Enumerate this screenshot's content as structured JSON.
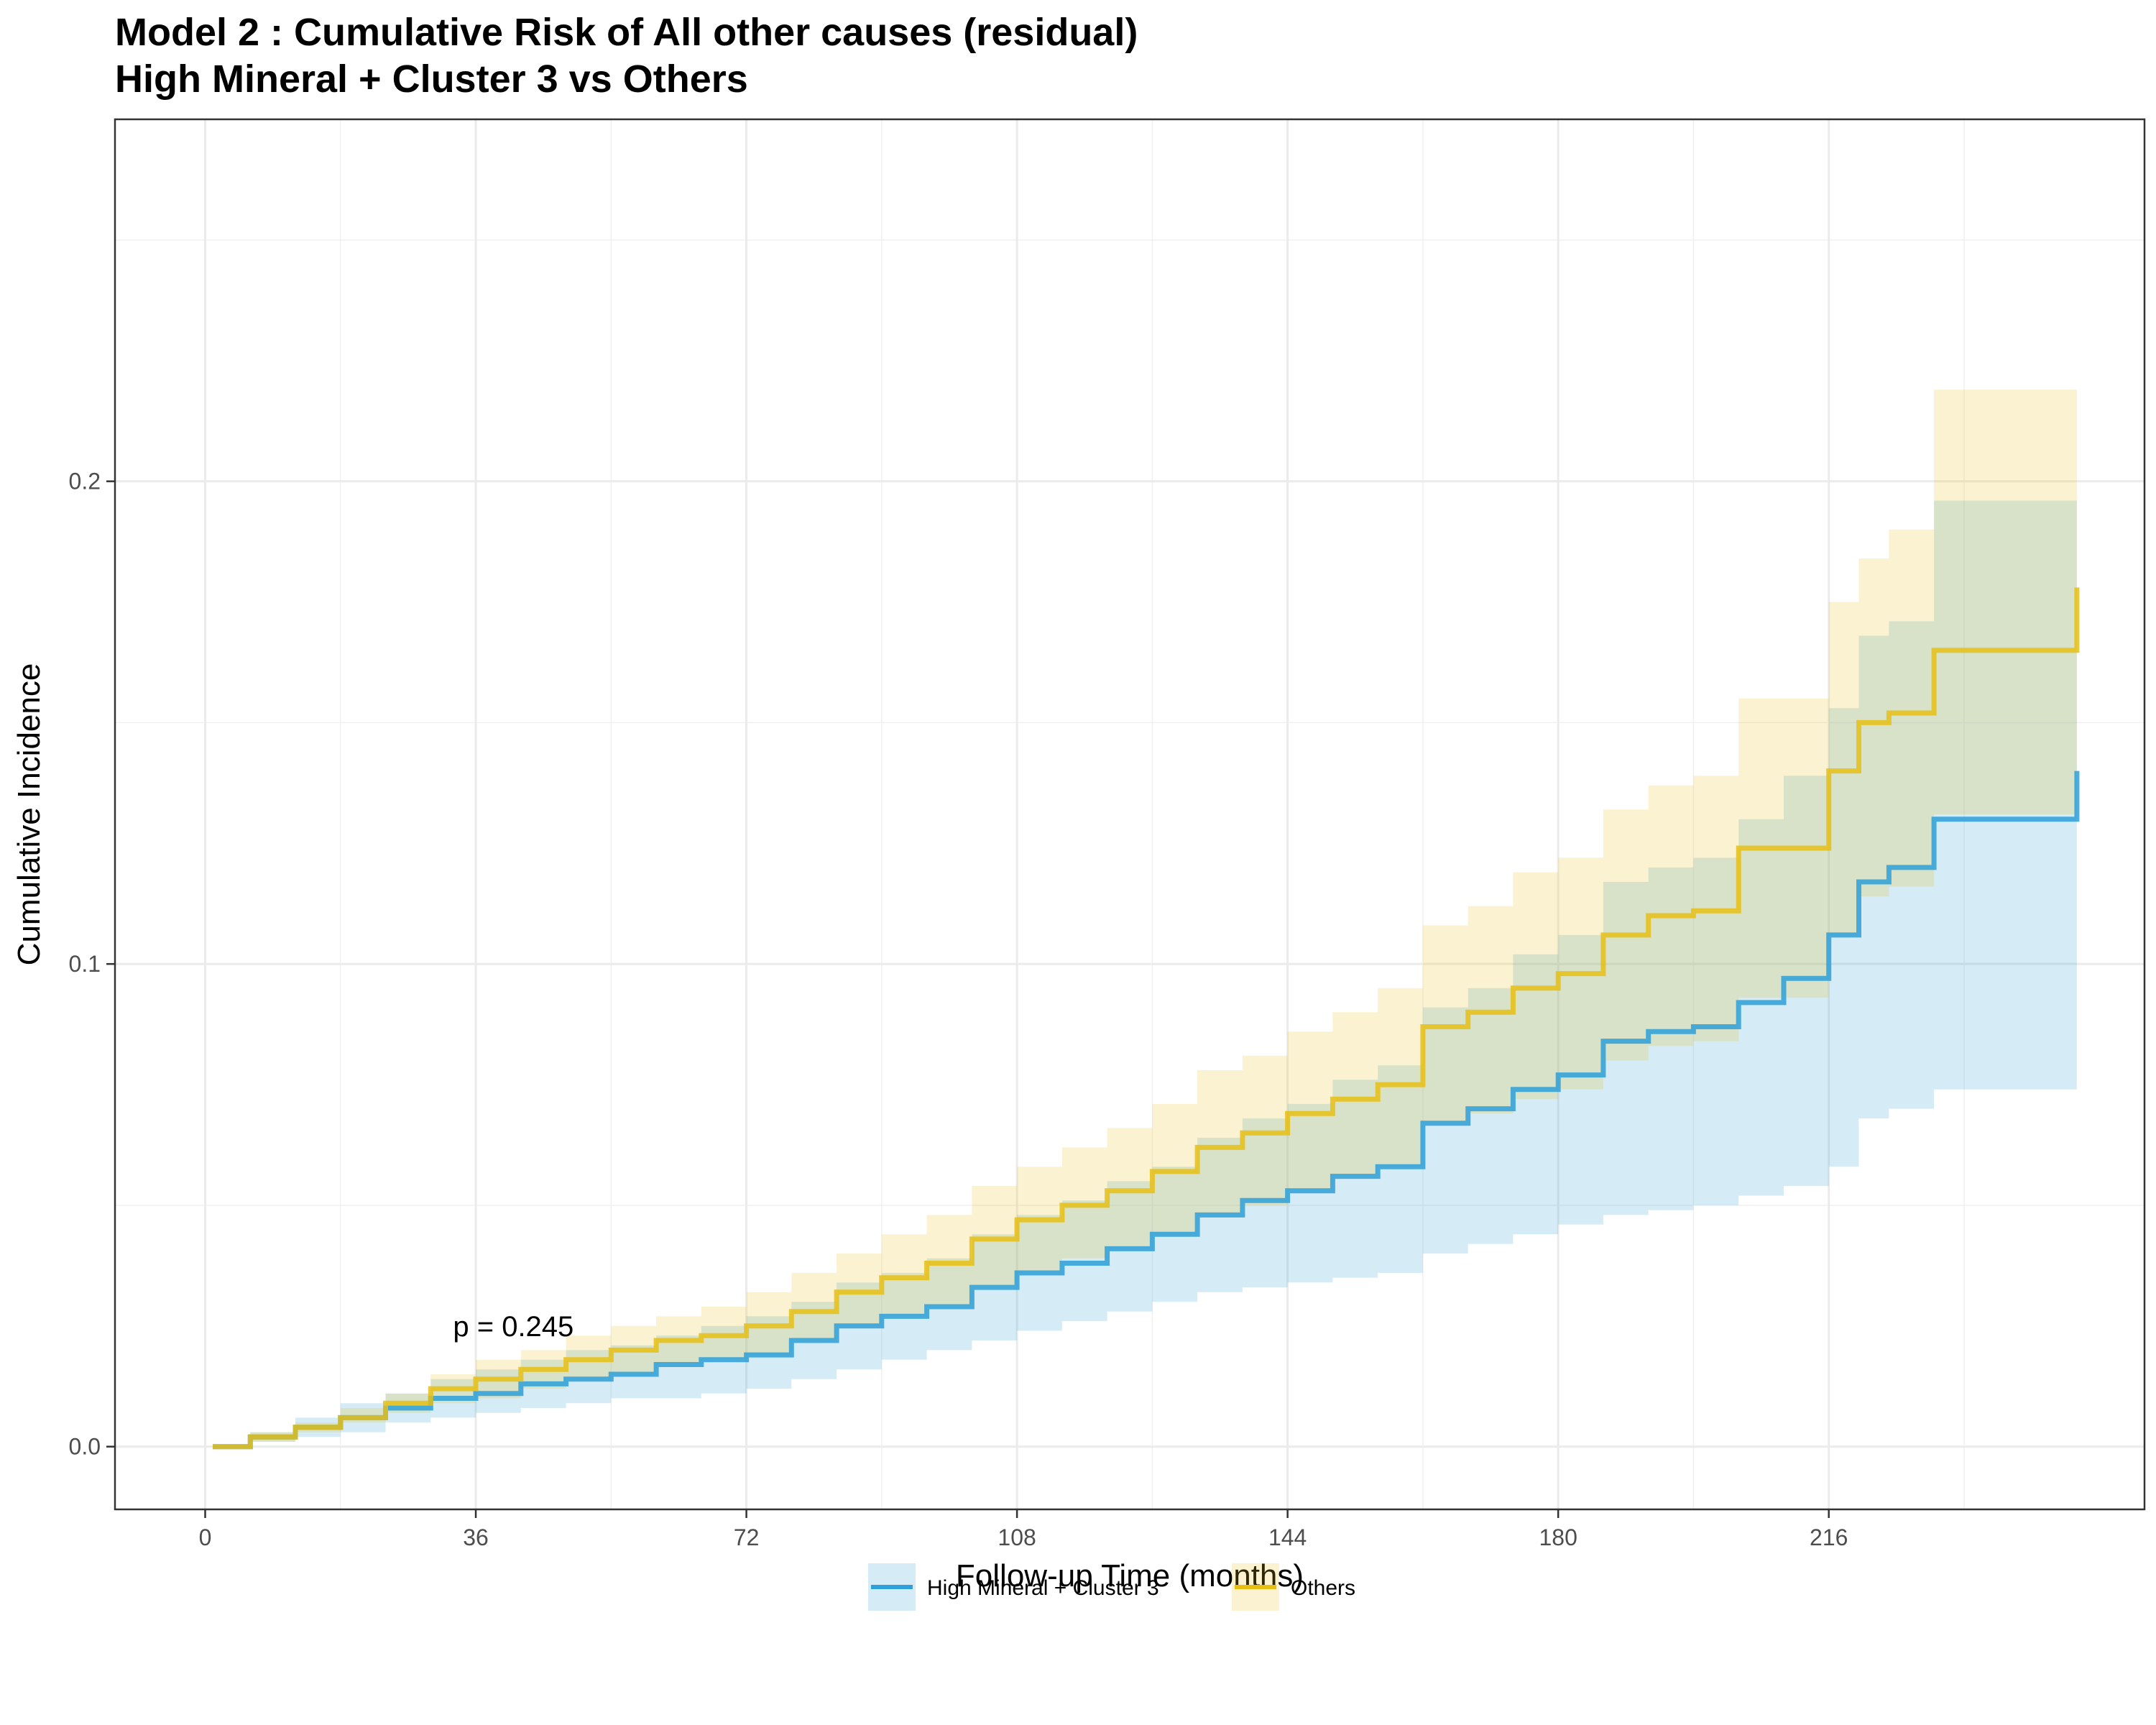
{
  "chart_data": {
    "type": "line",
    "step": true,
    "title": "Model 2 : Cumulative Risk of All other causes (residual)",
    "subtitle": "High Mineral + Cluster 3 vs Others",
    "xlabel": "Follow-up Time (months)",
    "ylabel": "Cumulative Incidence",
    "xlim": [
      -12,
      258
    ],
    "ylim": [
      -0.013,
      0.275
    ],
    "x_ticks": [
      0,
      36,
      72,
      108,
      144,
      180,
      216
    ],
    "x_tick_labels": [
      "0",
      "36",
      "72",
      "108",
      "144",
      "180",
      "216"
    ],
    "y_ticks": [
      0.0,
      0.1,
      0.2
    ],
    "y_tick_labels": [
      "0.0",
      "0.1",
      "0.2"
    ],
    "grid": true,
    "annotation": "p = 0.245",
    "annotation_pos": [
      41,
      0.025
    ],
    "legend_position": "bottom",
    "series": [
      {
        "name": "High Mineral + Cluster 3",
        "color": "#2E9FD8",
        "x": [
          1,
          6,
          12,
          18,
          24,
          30,
          36,
          42,
          48,
          54,
          60,
          66,
          72,
          78,
          84,
          90,
          96,
          102,
          108,
          114,
          120,
          126,
          132,
          138,
          144,
          150,
          156,
          162,
          168,
          174,
          180,
          186,
          192,
          198,
          204,
          210,
          216,
          220,
          224,
          230,
          249
        ],
        "y": [
          0.0,
          0.002,
          0.004,
          0.006,
          0.008,
          0.01,
          0.011,
          0.013,
          0.014,
          0.015,
          0.017,
          0.018,
          0.019,
          0.022,
          0.025,
          0.027,
          0.029,
          0.033,
          0.036,
          0.038,
          0.041,
          0.044,
          0.048,
          0.051,
          0.053,
          0.056,
          0.058,
          0.067,
          0.07,
          0.074,
          0.077,
          0.084,
          0.086,
          0.087,
          0.092,
          0.097,
          0.106,
          0.117,
          0.12,
          0.13,
          0.14
        ],
        "ci_lower": [
          0.0,
          0.001,
          0.002,
          0.003,
          0.005,
          0.006,
          0.007,
          0.008,
          0.009,
          0.01,
          0.01,
          0.011,
          0.012,
          0.014,
          0.016,
          0.018,
          0.02,
          0.022,
          0.024,
          0.026,
          0.028,
          0.03,
          0.032,
          0.033,
          0.034,
          0.035,
          0.036,
          0.04,
          0.042,
          0.044,
          0.046,
          0.048,
          0.049,
          0.05,
          0.052,
          0.054,
          0.058,
          0.068,
          0.07,
          0.074,
          0.082
        ],
        "ci_upper": [
          0.0,
          0.003,
          0.006,
          0.009,
          0.011,
          0.014,
          0.016,
          0.018,
          0.02,
          0.021,
          0.023,
          0.025,
          0.027,
          0.03,
          0.034,
          0.036,
          0.039,
          0.044,
          0.048,
          0.051,
          0.055,
          0.058,
          0.064,
          0.068,
          0.071,
          0.076,
          0.079,
          0.091,
          0.095,
          0.102,
          0.106,
          0.117,
          0.12,
          0.122,
          0.13,
          0.139,
          0.153,
          0.168,
          0.171,
          0.196,
          0.196
        ]
      },
      {
        "name": "Others",
        "color": "#E6BE14",
        "x": [
          1,
          6,
          12,
          18,
          24,
          30,
          36,
          42,
          48,
          54,
          60,
          66,
          72,
          78,
          84,
          90,
          96,
          102,
          108,
          114,
          120,
          126,
          132,
          138,
          144,
          150,
          156,
          162,
          168,
          174,
          180,
          186,
          192,
          198,
          204,
          210,
          216,
          220,
          224,
          230,
          249
        ],
        "y": [
          0.0,
          0.002,
          0.004,
          0.006,
          0.009,
          0.012,
          0.014,
          0.016,
          0.018,
          0.02,
          0.022,
          0.023,
          0.025,
          0.028,
          0.032,
          0.035,
          0.038,
          0.043,
          0.047,
          0.05,
          0.053,
          0.057,
          0.062,
          0.065,
          0.069,
          0.072,
          0.075,
          0.087,
          0.09,
          0.095,
          0.098,
          0.106,
          0.11,
          0.111,
          0.124,
          0.124,
          0.14,
          0.15,
          0.152,
          0.165,
          0.178
        ],
        "ci_lower": [
          0.0,
          0.001,
          0.003,
          0.005,
          0.007,
          0.009,
          0.01,
          0.012,
          0.014,
          0.015,
          0.017,
          0.018,
          0.019,
          0.022,
          0.025,
          0.027,
          0.029,
          0.033,
          0.036,
          0.039,
          0.041,
          0.044,
          0.048,
          0.05,
          0.053,
          0.056,
          0.058,
          0.067,
          0.069,
          0.072,
          0.074,
          0.08,
          0.083,
          0.084,
          0.093,
          0.093,
          0.106,
          0.114,
          0.116,
          0.131,
          0.134
        ],
        "ci_upper": [
          0.0,
          0.003,
          0.005,
          0.008,
          0.011,
          0.015,
          0.018,
          0.02,
          0.023,
          0.025,
          0.027,
          0.029,
          0.032,
          0.036,
          0.04,
          0.044,
          0.048,
          0.054,
          0.058,
          0.062,
          0.066,
          0.071,
          0.078,
          0.081,
          0.086,
          0.09,
          0.095,
          0.108,
          0.112,
          0.119,
          0.122,
          0.132,
          0.137,
          0.139,
          0.155,
          0.155,
          0.175,
          0.184,
          0.19,
          0.219,
          0.219
        ]
      }
    ]
  }
}
